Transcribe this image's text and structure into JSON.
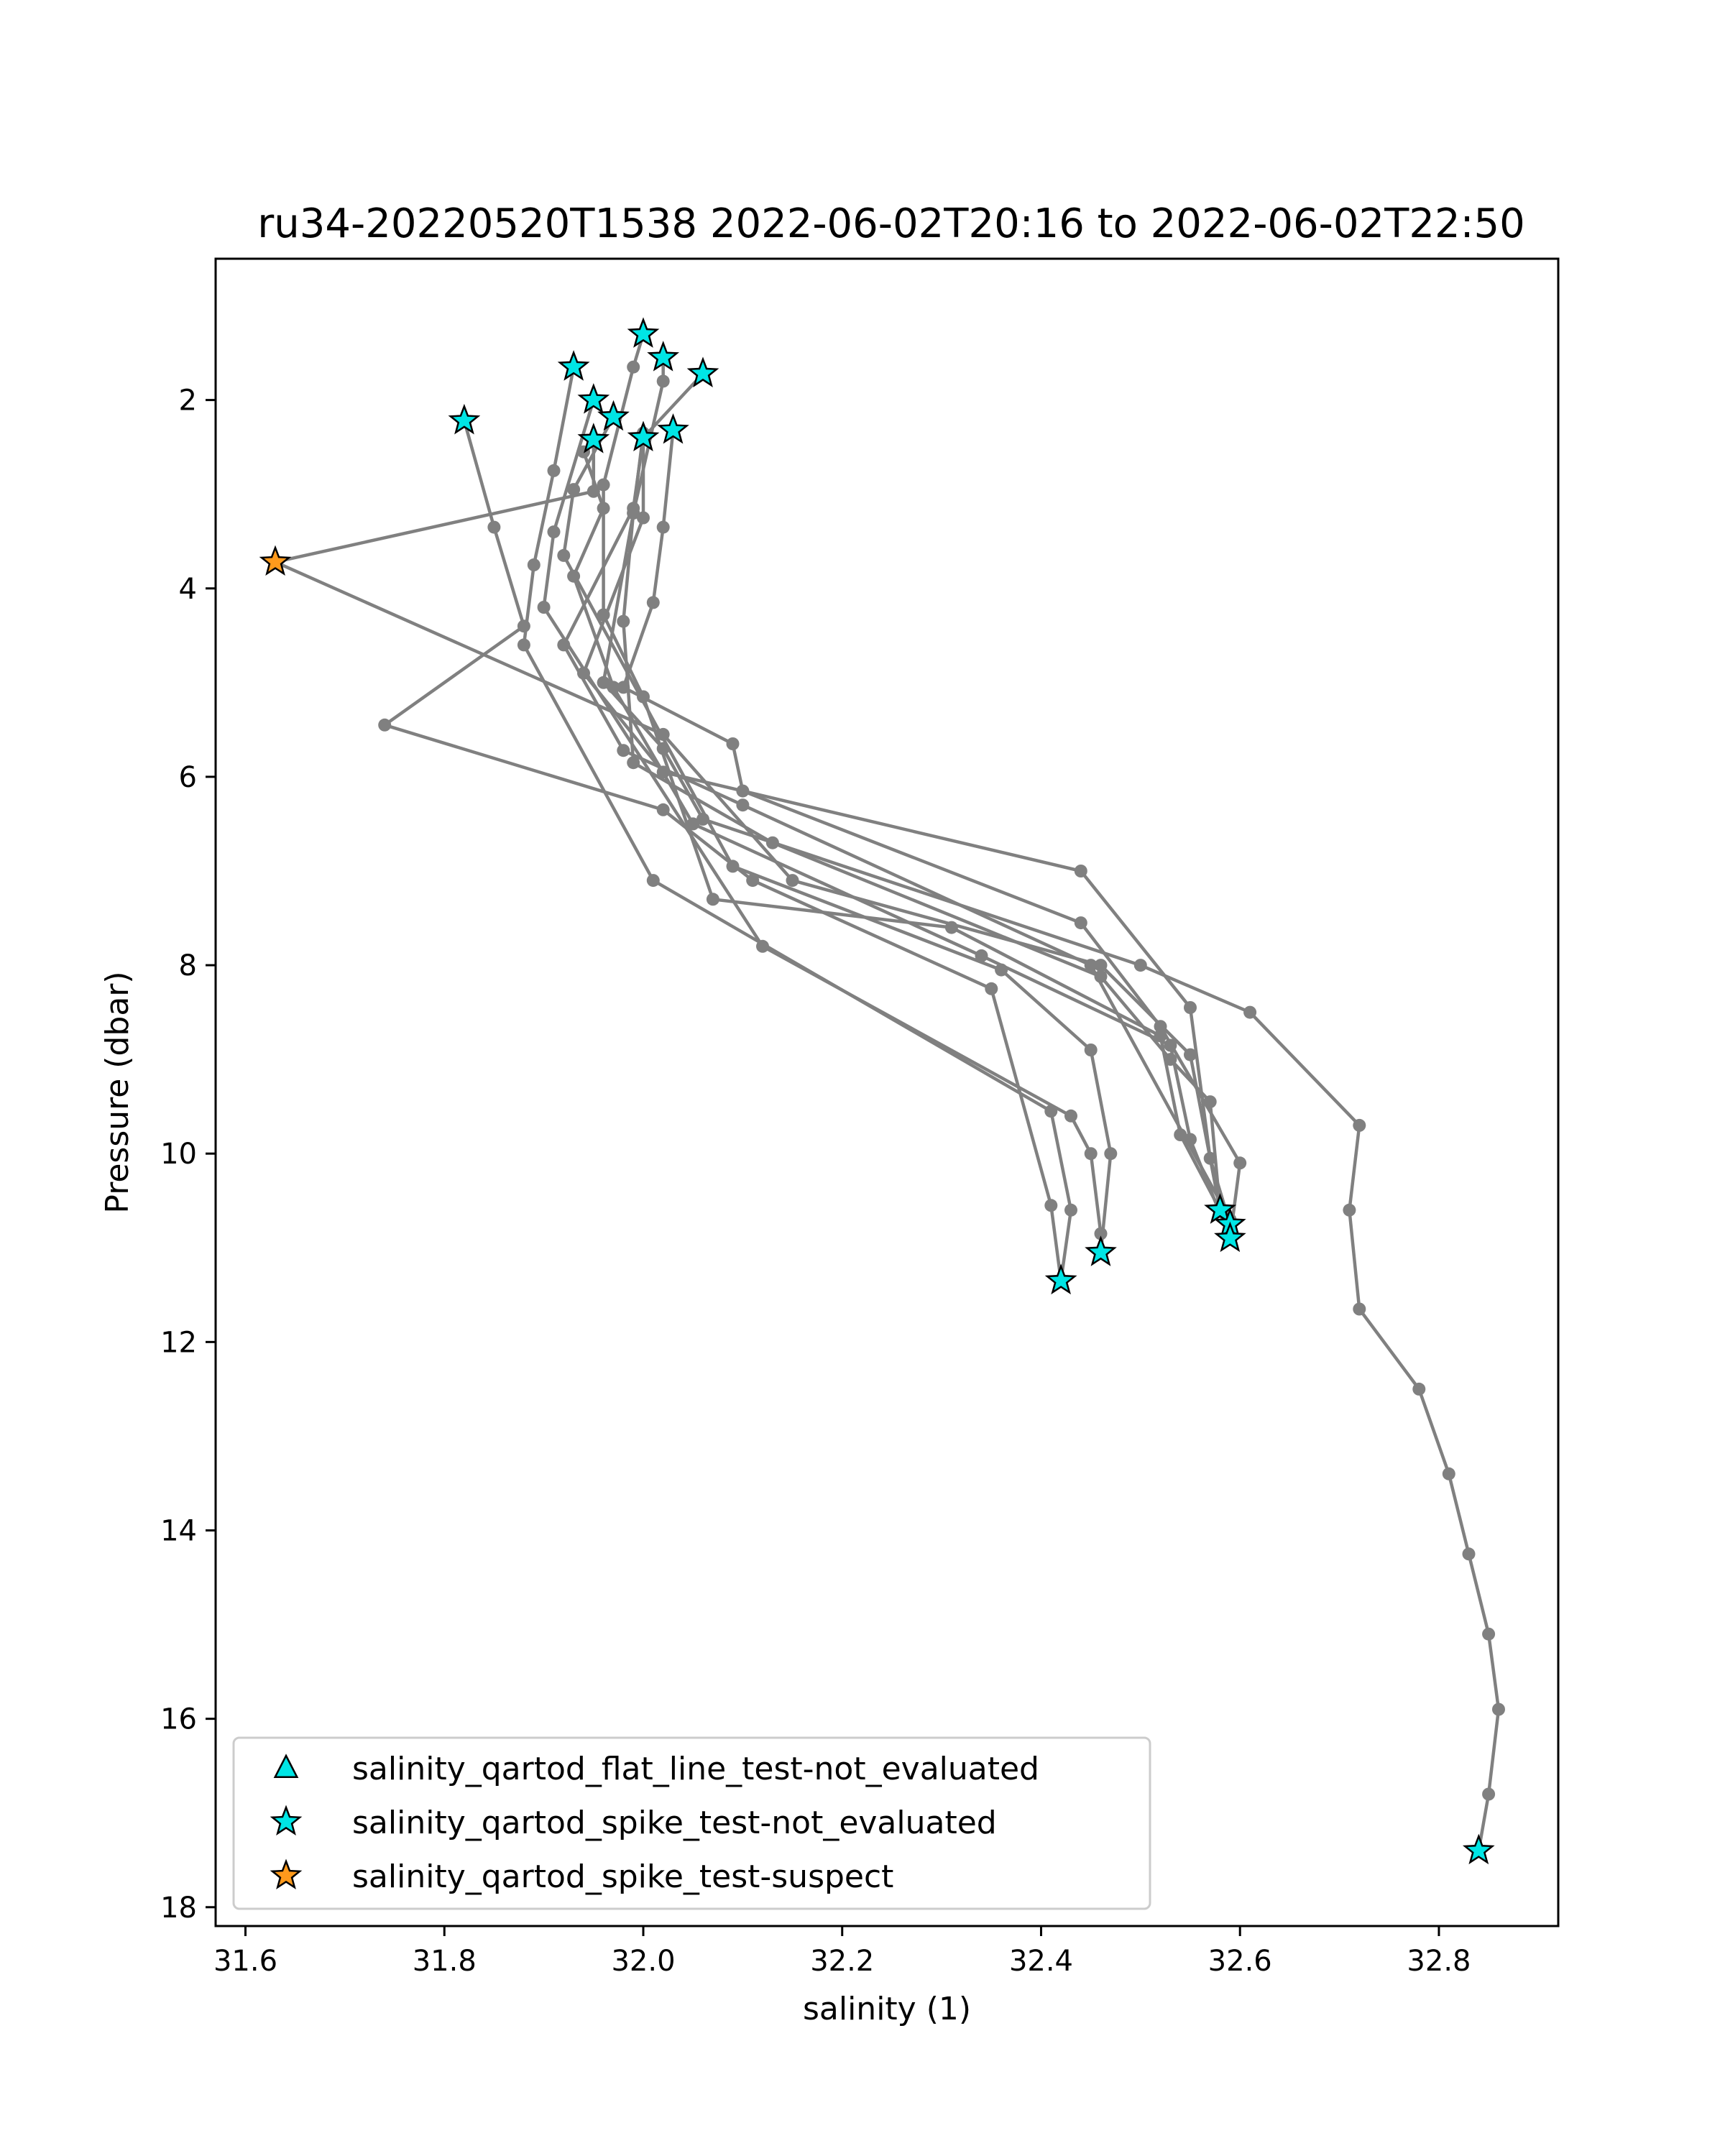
{
  "chart_data": {
    "type": "line",
    "title": "ru34-20220520T1538 2022-06-02T20:16 to 2022-06-02T22:50",
    "xlabel": "salinity (1)",
    "ylabel": "Pressure (dbar)",
    "xlim": [
      31.57,
      32.92
    ],
    "ylim": [
      18.2,
      0.5
    ],
    "y_inverted": true,
    "grid": false,
    "legend_position": "lower-left",
    "x_ticks": [
      "31.6",
      "31.8",
      "32.0",
      "32.2",
      "32.4",
      "32.6",
      "32.8"
    ],
    "x_tick_values": [
      31.6,
      31.8,
      32.0,
      32.2,
      32.4,
      32.6,
      32.8
    ],
    "y_ticks": [
      "2",
      "4",
      "6",
      "8",
      "10",
      "12",
      "14",
      "16",
      "18"
    ],
    "y_tick_values": [
      2,
      4,
      6,
      8,
      10,
      12,
      14,
      16,
      18
    ],
    "colors": {
      "profile_line": "#808080",
      "not_evaluated": "#00e5e5",
      "suspect": "#ff9a1c",
      "marker_edge": "#000000"
    },
    "series": [
      {
        "points": [
          [
            31.82,
            2.22
          ],
          [
            31.85,
            3.35
          ],
          [
            31.88,
            4.4
          ],
          [
            31.74,
            5.45
          ],
          [
            32.02,
            6.35
          ],
          [
            32.11,
            7.1
          ],
          [
            32.35,
            8.25
          ],
          [
            32.41,
            10.55
          ],
          [
            32.42,
            11.35
          ]
        ]
      },
      {
        "points": [
          [
            31.93,
            1.65
          ],
          [
            31.91,
            2.75
          ],
          [
            31.89,
            3.75
          ],
          [
            31.88,
            4.6
          ],
          [
            32.01,
            7.1
          ],
          [
            32.41,
            9.55
          ],
          [
            32.43,
            10.6
          ],
          [
            32.42,
            11.35
          ]
        ]
      },
      {
        "points": [
          [
            31.95,
            2.0
          ],
          [
            31.91,
            3.4
          ],
          [
            31.9,
            4.2
          ],
          [
            32.12,
            7.8
          ],
          [
            32.43,
            9.6
          ],
          [
            32.45,
            10.0
          ],
          [
            32.46,
            10.85
          ],
          [
            32.46,
            11.05
          ]
        ]
      },
      {
        "points": [
          [
            31.97,
            2.18
          ],
          [
            31.93,
            2.95
          ],
          [
            31.92,
            3.65
          ],
          [
            32.09,
            6.95
          ],
          [
            32.36,
            8.05
          ],
          [
            32.45,
            8.9
          ],
          [
            32.47,
            10.0
          ],
          [
            32.46,
            11.05
          ]
        ]
      },
      {
        "points": [
          [
            31.95,
            2.42
          ],
          [
            31.95,
            2.97
          ],
          [
            31.63,
            3.72
          ],
          [
            32.02,
            5.55
          ],
          [
            32.15,
            7.1
          ],
          [
            32.46,
            8.0
          ],
          [
            32.55,
            8.95
          ],
          [
            32.58,
            10.6
          ],
          [
            32.59,
            10.9
          ]
        ]
      },
      {
        "points": [
          [
            31.94,
            2.55
          ],
          [
            31.96,
            3.15
          ],
          [
            31.93,
            3.87
          ],
          [
            31.97,
            5.05
          ],
          [
            32.05,
            6.5
          ],
          [
            32.34,
            7.9
          ],
          [
            32.53,
            8.85
          ],
          [
            32.55,
            9.85
          ],
          [
            32.59,
            10.9
          ]
        ]
      },
      {
        "points": [
          [
            32.0,
            1.3
          ],
          [
            31.99,
            1.65
          ],
          [
            31.96,
            2.9
          ],
          [
            31.96,
            4.28
          ],
          [
            32.0,
            5.15
          ],
          [
            32.07,
            7.3
          ],
          [
            32.31,
            7.6
          ],
          [
            32.52,
            8.75
          ],
          [
            32.54,
            9.8
          ],
          [
            32.59,
            10.8
          ]
        ]
      },
      {
        "points": [
          [
            32.02,
            1.55
          ],
          [
            32.02,
            1.8
          ],
          [
            31.99,
            3.2
          ],
          [
            31.98,
            4.35
          ],
          [
            31.99,
            5.85
          ],
          [
            32.13,
            6.7
          ],
          [
            32.46,
            8.12
          ],
          [
            32.53,
            9.0
          ],
          [
            32.57,
            9.45
          ],
          [
            32.58,
            10.6
          ]
        ]
      },
      {
        "points": [
          [
            32.06,
            1.72
          ],
          [
            32.0,
            2.4
          ],
          [
            32.0,
            3.25
          ],
          [
            31.94,
            4.9
          ],
          [
            32.02,
            5.95
          ],
          [
            32.44,
            7.0
          ],
          [
            32.55,
            8.45
          ],
          [
            32.57,
            10.05
          ],
          [
            32.59,
            10.75
          ]
        ]
      },
      {
        "points": [
          [
            32.03,
            2.32
          ],
          [
            32.02,
            3.35
          ],
          [
            32.01,
            4.15
          ],
          [
            31.98,
            5.05
          ],
          [
            32.09,
            5.65
          ],
          [
            32.1,
            6.15
          ],
          [
            32.44,
            7.55
          ],
          [
            32.52,
            8.65
          ],
          [
            32.6,
            10.1
          ],
          [
            32.59,
            10.9
          ]
        ]
      },
      {
        "points": [
          [
            32.0,
            2.4
          ],
          [
            31.99,
            3.15
          ],
          [
            31.92,
            4.6
          ],
          [
            31.98,
            5.72
          ],
          [
            32.1,
            6.3
          ],
          [
            32.45,
            8.0
          ],
          [
            32.59,
            10.7
          ]
        ]
      },
      {
        "points": [
          [
            32.0,
            2.35
          ],
          [
            31.99,
            3.2
          ],
          [
            31.96,
            5.0
          ],
          [
            32.02,
            5.7
          ],
          [
            32.06,
            6.45
          ],
          [
            32.5,
            8.0
          ],
          [
            32.61,
            8.5
          ],
          [
            32.72,
            9.7
          ],
          [
            32.71,
            10.6
          ],
          [
            32.72,
            11.65
          ],
          [
            32.78,
            12.5
          ],
          [
            32.81,
            13.4
          ],
          [
            32.83,
            14.25
          ],
          [
            32.85,
            15.1
          ],
          [
            32.86,
            15.9
          ],
          [
            32.85,
            16.8
          ],
          [
            32.84,
            17.4
          ]
        ]
      }
    ],
    "markers": [
      {
        "x": 31.82,
        "y": 2.22,
        "flag": "not_evaluated"
      },
      {
        "x": 31.93,
        "y": 1.65,
        "flag": "not_evaluated"
      },
      {
        "x": 31.95,
        "y": 2.0,
        "flag": "not_evaluated"
      },
      {
        "x": 31.97,
        "y": 2.18,
        "flag": "not_evaluated"
      },
      {
        "x": 31.95,
        "y": 2.42,
        "flag": "not_evaluated"
      },
      {
        "x": 32.0,
        "y": 1.3,
        "flag": "not_evaluated"
      },
      {
        "x": 32.02,
        "y": 1.55,
        "flag": "not_evaluated"
      },
      {
        "x": 32.06,
        "y": 1.72,
        "flag": "not_evaluated"
      },
      {
        "x": 32.03,
        "y": 2.32,
        "flag": "not_evaluated"
      },
      {
        "x": 32.0,
        "y": 2.4,
        "flag": "not_evaluated"
      },
      {
        "x": 31.63,
        "y": 3.72,
        "flag": "suspect"
      },
      {
        "x": 32.42,
        "y": 11.35,
        "flag": "not_evaluated"
      },
      {
        "x": 32.46,
        "y": 11.05,
        "flag": "not_evaluated"
      },
      {
        "x": 32.58,
        "y": 10.6,
        "flag": "not_evaluated"
      },
      {
        "x": 32.59,
        "y": 10.75,
        "flag": "not_evaluated"
      },
      {
        "x": 32.59,
        "y": 10.9,
        "flag": "not_evaluated"
      },
      {
        "x": 32.84,
        "y": 17.4,
        "flag": "not_evaluated"
      }
    ],
    "legend": [
      {
        "label": "salinity_qartod_flat_line_test-not_evaluated",
        "marker": "triangle",
        "color": "#00e5e5"
      },
      {
        "label": "salinity_qartod_spike_test-not_evaluated",
        "marker": "star",
        "color": "#00e5e5"
      },
      {
        "label": "salinity_qartod_spike_test-suspect",
        "marker": "star",
        "color": "#ff9a1c"
      }
    ]
  }
}
